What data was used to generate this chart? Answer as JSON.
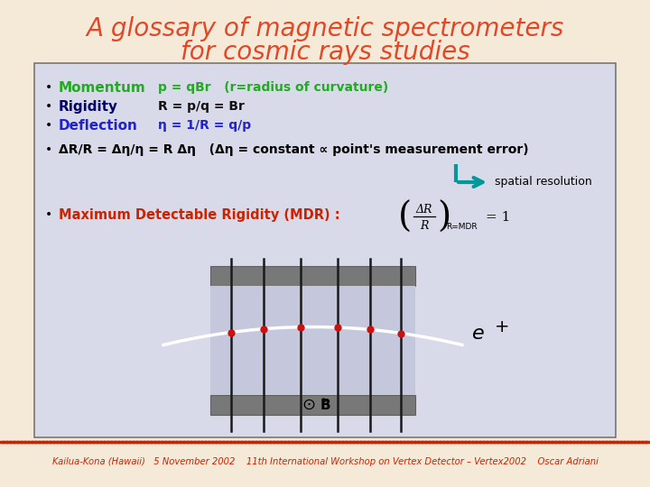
{
  "title_line1": "A glossary of magnetic spectrometers",
  "title_line2": "for cosmic rays studies",
  "title_color": "#e04828",
  "bg_color": "#f5ead8",
  "content_bg": "#d8daea",
  "content_border": "#888888",
  "bullet1_label": "Momentum",
  "bullet1_label_color": "#22aa22",
  "bullet1_text": "p = qBr   (r=radius of curvature)",
  "bullet1_text_color": "#22aa22",
  "bullet2_label": "Rigidity",
  "bullet2_label_color": "#000066",
  "bullet2_text": "R = p/q = Br",
  "bullet2_text_color": "#111111",
  "bullet3_label": "Deflection",
  "bullet3_label_color": "#2222cc",
  "bullet3_text": "η = 1/R = q/p",
  "bullet3_text_color": "#2222cc",
  "mdr_label_color": "#cc2200",
  "footer_color": "#cc2200",
  "wire_color": "#1a1a1a",
  "dot_color": "#cc1111",
  "arrow_color": "#009999"
}
